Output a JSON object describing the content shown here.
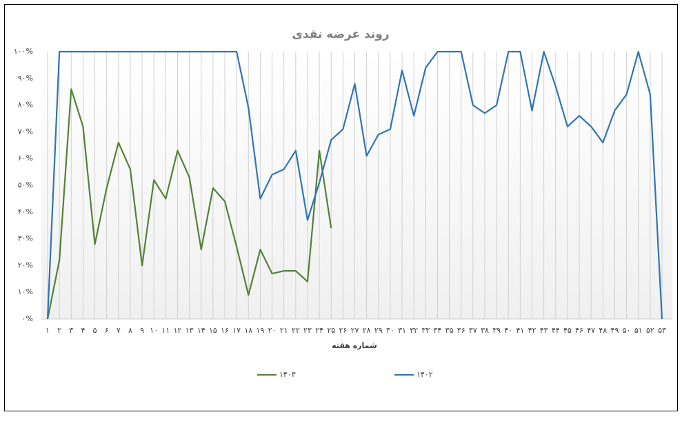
{
  "chart_data": {
    "type": "line",
    "title": "روند عرضه نقدی",
    "x_label": "شماره هفته",
    "categories": [
      "۱",
      "۲",
      "۳",
      "۴",
      "۵",
      "۶",
      "۷",
      "۸",
      "۹",
      "۱۰",
      "۱۱",
      "۱۲",
      "۱۳",
      "۱۴",
      "۱۵",
      "۱۶",
      "۱۷",
      "۱۸",
      "۱۹",
      "۲۰",
      "۲۱",
      "۲۲",
      "۲۳",
      "۲۴",
      "۲۵",
      "۲۶",
      "۲۷",
      "۲۸",
      "۲۹",
      "۳۰",
      "۳۱",
      "۳۲",
      "۳۳",
      "۳۴",
      "۳۵",
      "۳۶",
      "۳۷",
      "۳۸",
      "۳۹",
      "۴۰",
      "۴۱",
      "۴۲",
      "۴۳",
      "۴۴",
      "۴۵",
      "۴۶",
      "۴۷",
      "۴۸",
      "۴۹",
      "۵۰",
      "۵۱",
      "۵۲",
      "۵۳"
    ],
    "series": [
      {
        "name": "۱۴۰۳",
        "color": "#538135",
        "values": [
          0,
          22,
          86,
          72,
          28,
          49,
          66,
          56,
          20,
          52,
          45,
          63,
          53,
          26,
          49,
          44,
          27,
          9,
          26,
          17,
          18,
          18,
          14,
          63,
          34,
          null,
          null,
          null,
          null,
          null,
          null,
          null,
          null,
          null,
          null,
          null,
          null,
          null,
          null,
          null,
          null,
          null,
          null,
          null,
          null,
          null,
          null,
          null,
          null,
          null,
          null,
          null,
          null
        ]
      },
      {
        "name": "۱۴۰۲",
        "color": "#2e75b6",
        "values": [
          0,
          100,
          100,
          100,
          100,
          100,
          100,
          100,
          100,
          100,
          100,
          100,
          100,
          100,
          100,
          100,
          100,
          79,
          45,
          54,
          56,
          63,
          37,
          51,
          67,
          71,
          88,
          61,
          69,
          71,
          93,
          76,
          94,
          100,
          100,
          100,
          80,
          77,
          80,
          100,
          100,
          78,
          100,
          87,
          72,
          76,
          72,
          66,
          78,
          84,
          100,
          84,
          0
        ]
      }
    ],
    "ylim": [
      0,
      100
    ],
    "yticks": [
      {
        "value": 0,
        "label": "۰%"
      },
      {
        "value": 10,
        "label": "۱۰%"
      },
      {
        "value": 20,
        "label": "۲۰%"
      },
      {
        "value": 30,
        "label": "۳۰%"
      },
      {
        "value": 40,
        "label": "۴۰%"
      },
      {
        "value": 50,
        "label": "۵۰%"
      },
      {
        "value": 60,
        "label": "۶۰%"
      },
      {
        "value": 70,
        "label": "۷۰%"
      },
      {
        "value": 80,
        "label": "۸۰%"
      },
      {
        "value": 90,
        "label": "۹۰%"
      },
      {
        "value": 100,
        "label": "۱۰۰%"
      }
    ],
    "grid": true,
    "legend": "bottom"
  }
}
